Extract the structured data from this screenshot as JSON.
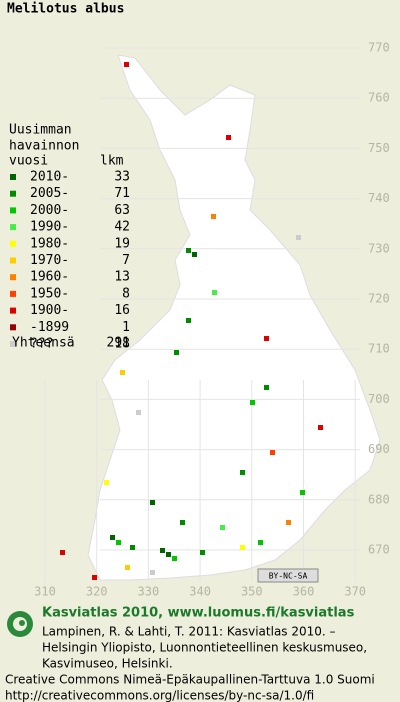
{
  "title": "Melilotus albus",
  "legend": {
    "heading": [
      "Uusimman",
      "havainnon"
    ],
    "col_label": "vuosi",
    "col_count": "lkm",
    "rows": [
      {
        "label": "2010-",
        "count": 33,
        "color": "#006400"
      },
      {
        "label": "2005-",
        "count": 71,
        "color": "#008c00"
      },
      {
        "label": "2000-",
        "count": 63,
        "color": "#00c800"
      },
      {
        "label": "1990-",
        "count": 42,
        "color": "#44ee44"
      },
      {
        "label": "1980-",
        "count": 19,
        "color": "#ffff00"
      },
      {
        "label": "1970-",
        "count": 7,
        "color": "#ffcc00"
      },
      {
        "label": "1960-",
        "count": 13,
        "color": "#ff8000"
      },
      {
        "label": "1950-",
        "count": 8,
        "color": "#ff4000"
      },
      {
        "label": "1900-",
        "count": 16,
        "color": "#dd0000"
      },
      {
        "label": "-1899",
        "count": 1,
        "color": "#990000"
      },
      {
        "label": "???",
        "count": 18,
        "color": "#cccccc"
      }
    ],
    "total_label": "Yhteensä",
    "total": 291
  },
  "grid": {
    "northing": [
      770,
      760,
      750,
      740,
      730,
      720,
      710,
      700,
      690,
      680,
      670
    ],
    "easting": [
      310,
      320,
      330,
      340,
      350,
      360,
      370
    ]
  },
  "badge": "BY-NC-SA",
  "footer": {
    "brand": "Kasviatlas 2010, www.luomus.fi/kasviatlas",
    "citation": [
      "Lampinen, R. & Lahti, T. 2011: Kasviatlas 2010. –",
      "Helsingin Yliopisto, Luonnontieteellinen keskusmuseo,",
      "Kasvimuseo, Helsinki."
    ],
    "license": [
      "Creative Commons Nimeä-Epäkaupallinen-Tarttuva 1.0 Suomi",
      "http://creativecommons.org/licenses/by-nc-sa/1.0/fi"
    ]
  }
}
